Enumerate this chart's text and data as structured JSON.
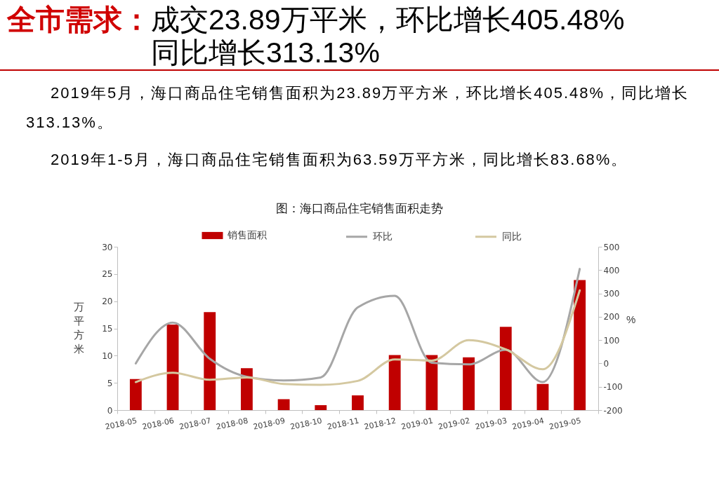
{
  "chart_data": {
    "type": "bar",
    "title": "全市需求：",
    "subtitle": "成交23.89万平米，环比增长405.48%同比增长313.13%",
    "annotations": [
      "2019年5月，海口商品住宅销售面积为23.89万平方米，环比增长405.48%，同比增长313.13%。",
      "2019年1-5月，海口商品住宅销售面积为63.59万平方米，同比增长83.68%。",
      "图：海口商品住宅销售面积走势"
    ],
    "categories": [
      "2018-05",
      "2018-06",
      "2018-07",
      "2018-08",
      "2018-09",
      "2018-10",
      "2018-11",
      "2018-12",
      "2019-01",
      "2019-02",
      "2019-03",
      "2019-04",
      "2019-05"
    ],
    "series": [
      {
        "name": "销售面积",
        "type": "bar",
        "color": "#c00000",
        "values": [
          5.7,
          15.7,
          18.0,
          7.7,
          2.0,
          0.9,
          2.7,
          10.1,
          10.1,
          9.7,
          15.3,
          4.8,
          23.9
        ]
      },
      {
        "name": "环比",
        "type": "line",
        "axis": "y2",
        "color": "#a6a6a6",
        "values": [
          0,
          175,
          20,
          -57,
          -73,
          -60,
          240,
          290,
          3,
          -4,
          58,
          -80,
          405
        ]
      },
      {
        "name": "同比",
        "type": "line",
        "axis": "y2",
        "color": "#d4c8a0",
        "values": [
          -80,
          -40,
          -70,
          -60,
          -88,
          -92,
          -75,
          17,
          12,
          100,
          60,
          -25,
          313
        ]
      }
    ],
    "ylabel": "万平方米",
    "y2label": "%",
    "ylim": [
      0,
      30
    ],
    "yticks": [
      0,
      5,
      10,
      15,
      20,
      25,
      30
    ],
    "y2lim": [
      -200,
      500
    ],
    "y2ticks": [
      -200,
      -100,
      0,
      100,
      200,
      300,
      400,
      500
    ],
    "grid": false,
    "legend": "top"
  }
}
